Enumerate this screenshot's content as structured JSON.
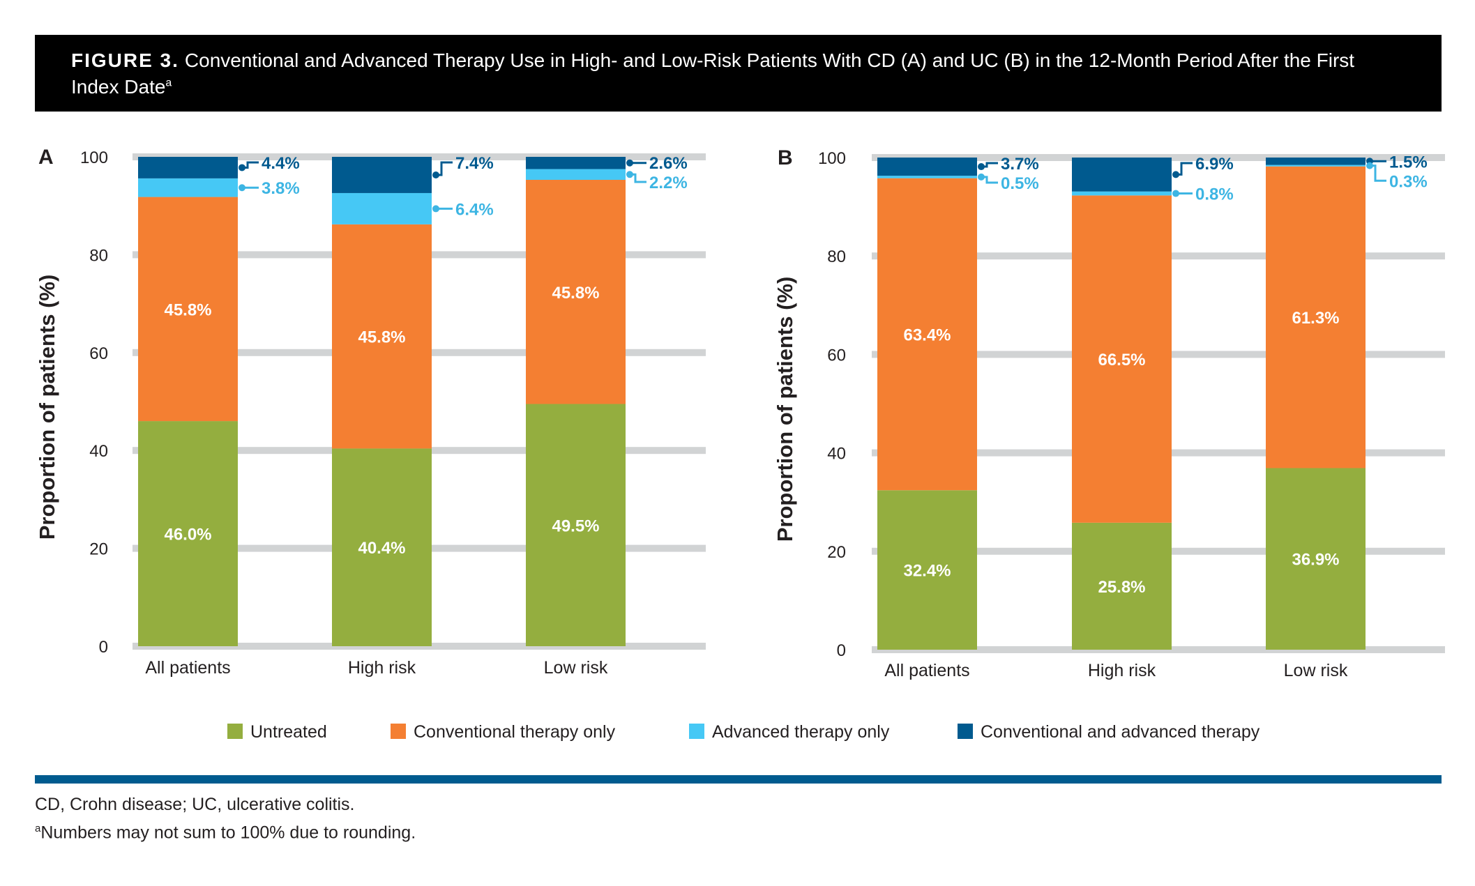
{
  "figure": {
    "number_label": "FIGURE 3.",
    "title_main": "Conventional and Advanced Therapy Use in High- and Low-Risk Patients With CD (A) and UC (B) in the 12-Month Period After the First Index Date",
    "title_superscript": "a"
  },
  "colors": {
    "untreated": "#94ae3f",
    "conventional": "#f47f32",
    "advanced": "#46c8f5",
    "both": "#005a8f",
    "gridline": "#d1d3d4",
    "both_label": "#005a8f",
    "advanced_label": "#3db5e3"
  },
  "legend": [
    {
      "key": "untreated",
      "label": "Untreated"
    },
    {
      "key": "conventional",
      "label": "Conventional therapy only"
    },
    {
      "key": "advanced",
      "label": "Advanced therapy only"
    },
    {
      "key": "both",
      "label": "Conventional and advanced therapy"
    }
  ],
  "chart_data": [
    {
      "panel": "A",
      "type": "bar",
      "stacked": true,
      "ylabel": "Proportion of patients (%)",
      "ylim": [
        0,
        100
      ],
      "yticks": [
        0,
        20,
        40,
        60,
        80,
        100
      ],
      "grid": true,
      "categories": [
        "All patients",
        "High risk",
        "Low risk"
      ],
      "series": [
        {
          "key": "untreated",
          "name": "Untreated",
          "values": [
            46.0,
            40.4,
            49.5
          ],
          "labels": [
            "46.0%",
            "40.4%",
            "49.5%"
          ]
        },
        {
          "key": "conventional",
          "name": "Conventional therapy only",
          "values": [
            45.8,
            45.8,
            45.8
          ],
          "labels": [
            "45.8%",
            "45.8%",
            "45.8%"
          ]
        },
        {
          "key": "advanced",
          "name": "Advanced therapy only",
          "values": [
            3.8,
            6.4,
            2.2
          ],
          "labels": [
            "3.8%",
            "6.4%",
            "2.2%"
          ]
        },
        {
          "key": "both",
          "name": "Conventional and advanced therapy",
          "values": [
            4.4,
            7.4,
            2.6
          ],
          "labels": [
            "4.4%",
            "7.4%",
            "2.6%"
          ]
        }
      ]
    },
    {
      "panel": "B",
      "type": "bar",
      "stacked": true,
      "ylabel": "Proportion of patients (%)",
      "ylim": [
        0,
        100
      ],
      "yticks": [
        0,
        20,
        40,
        60,
        80,
        100
      ],
      "grid": true,
      "categories": [
        "All patients",
        "High risk",
        "Low risk"
      ],
      "series": [
        {
          "key": "untreated",
          "name": "Untreated",
          "values": [
            32.4,
            25.8,
            36.9
          ],
          "labels": [
            "32.4%",
            "25.8%",
            "36.9%"
          ]
        },
        {
          "key": "conventional",
          "name": "Conventional therapy only",
          "values": [
            63.4,
            66.5,
            61.3
          ],
          "labels": [
            "63.4%",
            "66.5%",
            "61.3%"
          ]
        },
        {
          "key": "advanced",
          "name": "Advanced therapy only",
          "values": [
            0.5,
            0.8,
            0.3
          ],
          "labels": [
            "0.5%",
            "0.8%",
            "0.3%"
          ]
        },
        {
          "key": "both",
          "name": "Conventional and advanced therapy",
          "values": [
            3.7,
            6.9,
            1.5
          ],
          "labels": [
            "3.7%",
            "6.9%",
            "1.5%"
          ]
        }
      ]
    }
  ],
  "footnotes": {
    "abbreviations": "CD, Crohn disease; UC, ulcerative colitis.",
    "a_marker": "a",
    "a_text": "Numbers may not sum to 100% due to rounding."
  }
}
